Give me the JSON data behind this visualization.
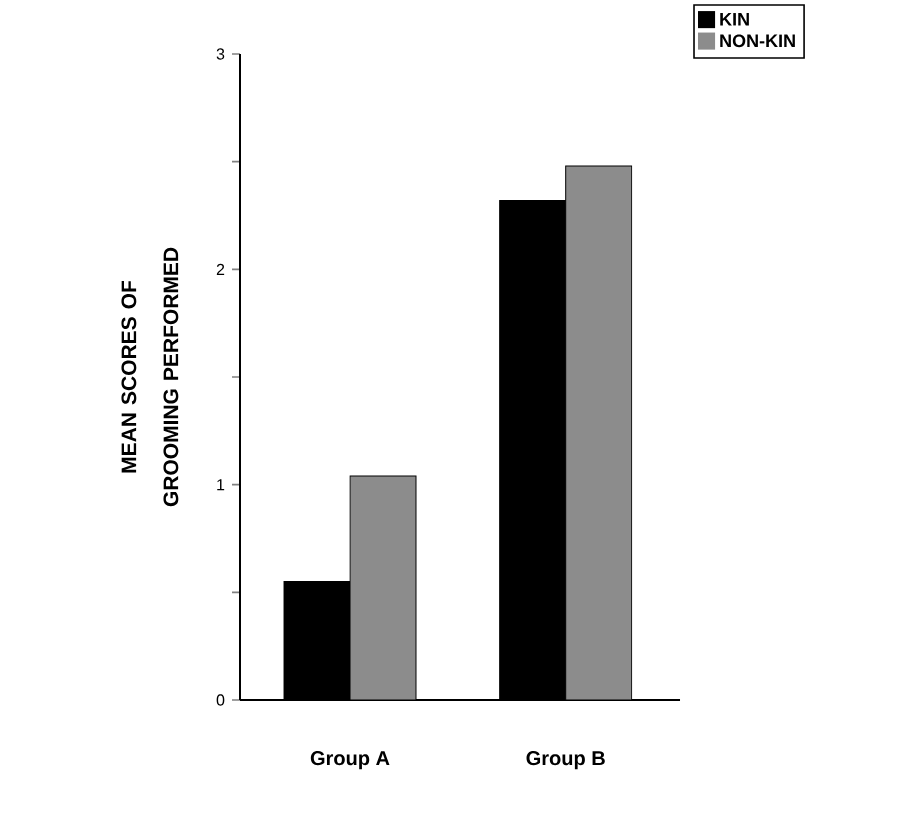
{
  "chart_data": {
    "type": "bar",
    "ylabel": "MEAN SCORES OF GROOMING PERFORMED",
    "categories": [
      "Group A",
      "Group B"
    ],
    "series": [
      {
        "name": "KIN",
        "color": "#000000",
        "values": [
          0.55,
          2.32
        ]
      },
      {
        "name": "NON-KIN",
        "color": "#8c8c8c",
        "values": [
          1.04,
          2.48
        ]
      }
    ],
    "ylim": [
      0,
      3
    ],
    "yticks": [
      0,
      {
        "value": 0.5,
        "label": null
      },
      1,
      {
        "value": 1.5,
        "label": null
      },
      2,
      {
        "value": 2.5,
        "label": null
      },
      3
    ],
    "legend": "top right"
  }
}
